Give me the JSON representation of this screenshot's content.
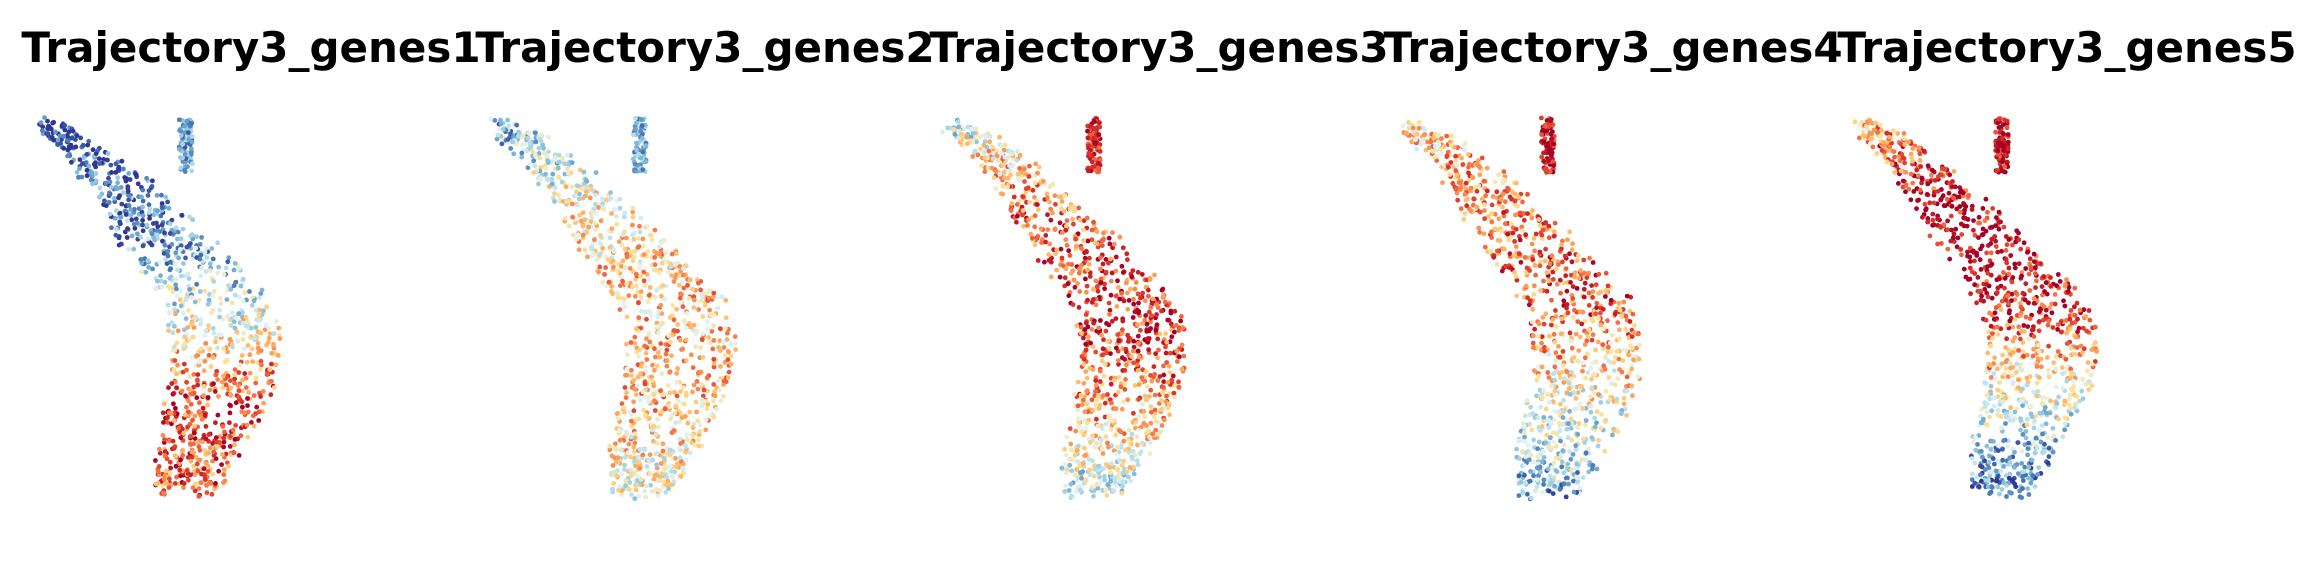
{
  "chart_data": [
    {
      "type": "scatter",
      "title": "Trajectory3_genes1",
      "trend": [
        -1.0,
        -0.75,
        -0.2,
        0.7,
        0.55
      ],
      "stem_value": -0.6
    },
    {
      "type": "scatter",
      "title": "Trajectory3_genes2",
      "trend": [
        -0.55,
        0.05,
        0.25,
        0.3,
        -0.1
      ],
      "stem_value": -0.5
    },
    {
      "type": "scatter",
      "title": "Trajectory3_genes3",
      "trend": [
        -0.25,
        0.55,
        0.8,
        0.4,
        -0.3
      ],
      "stem_value": 0.8
    },
    {
      "type": "scatter",
      "title": "Trajectory3_genes4",
      "trend": [
        0.1,
        0.5,
        0.6,
        -0.05,
        -0.55
      ],
      "stem_value": 0.85
    },
    {
      "type": "scatter",
      "title": "Trajectory3_genes5",
      "trend": [
        0.15,
        1.0,
        0.8,
        -0.15,
        -0.8
      ],
      "stem_value": 0.9
    }
  ],
  "colormap": [
    "#313695",
    "#4575b4",
    "#74add1",
    "#abd9e9",
    "#e0f3f8",
    "#fee090",
    "#fdae61",
    "#f46d43",
    "#d73027",
    "#a50026"
  ]
}
